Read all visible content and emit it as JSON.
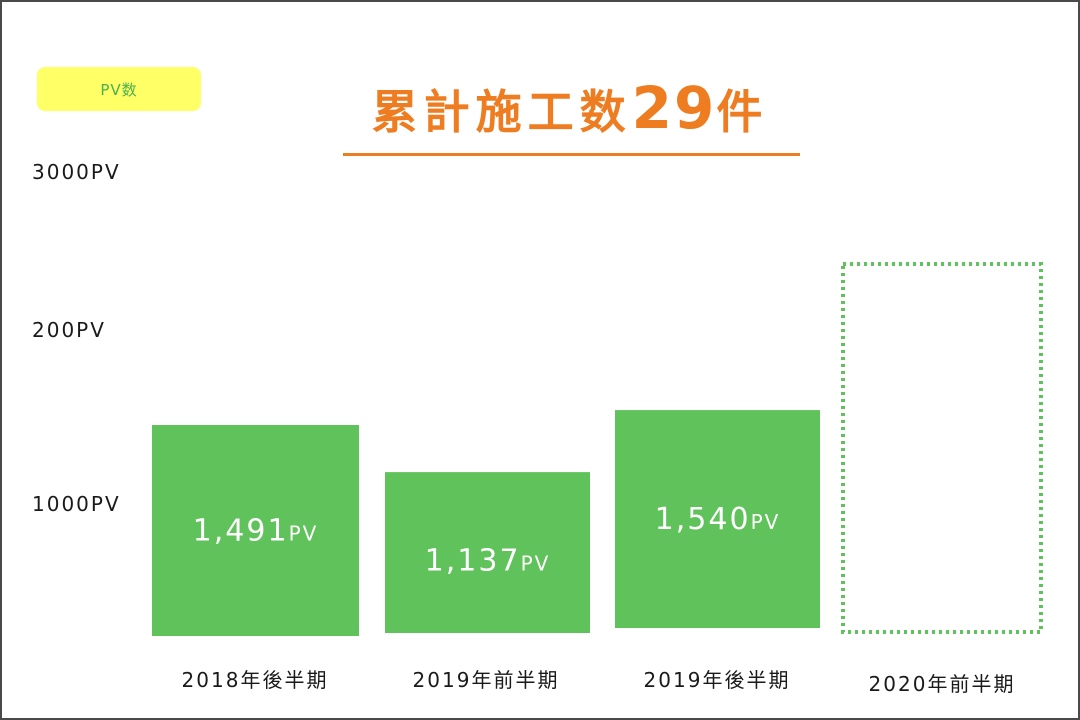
{
  "badge_label": "PV数",
  "title": {
    "prefix": "累計施工数",
    "number": "29",
    "suffix": "件"
  },
  "colors": {
    "bar": "#5fc25a",
    "title": "#ee7d22",
    "badge_bg": "#ffff66",
    "dotted_outline": "#5fc25a"
  },
  "chart_data": {
    "type": "bar",
    "title": "累計施工数29件",
    "ylabel": "PV数",
    "y_tick_labels": [
      "3000PV",
      "200PV",
      "1000PV"
    ],
    "categories": [
      "2018年後半期",
      "2019年前半期",
      "2019年後半期",
      "2020年前半期"
    ],
    "values": [
      1491,
      1137,
      1540,
      null
    ],
    "value_labels": [
      {
        "number": "1,491",
        "unit": "PV"
      },
      {
        "number": "1,137",
        "unit": "PV"
      },
      {
        "number": "1,540",
        "unit": "PV"
      },
      null
    ],
    "pending_category": "2020年前半期",
    "grid": false,
    "legend": "none"
  }
}
